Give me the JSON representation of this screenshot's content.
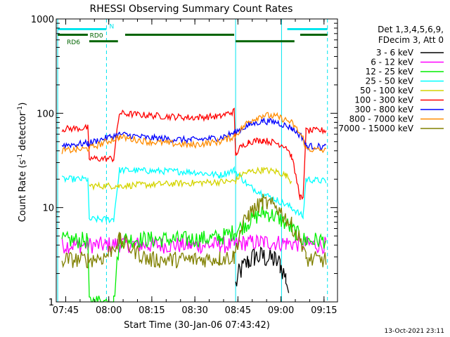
{
  "chart_data": {
    "type": "line",
    "title": "RHESSI Observing Summary Count Rates",
    "xlabel": "Start Time (30-Jan-06 07:43:42)",
    "ylabel": "Count Rate (s",
    "ylabel_sup1": "-1",
    "ylabel_mid": " detector",
    "ylabel_sup2": "-1",
    "ylabel_end": ")",
    "x_unit": "minutes after 07:43:42",
    "x_range": [
      -2,
      96
    ],
    "ylim": [
      1,
      1000
    ],
    "y_scale": "log",
    "x_ticks": [
      {
        "label": "07:45",
        "t": 1.3
      },
      {
        "label": "08:00",
        "t": 16.3
      },
      {
        "label": "08:15",
        "t": 31.3
      },
      {
        "label": "08:30",
        "t": 46.3
      },
      {
        "label": "08:45",
        "t": 61.3
      },
      {
        "label": "09:00",
        "t": 76.3
      },
      {
        "label": "09:15",
        "t": 91.3
      }
    ],
    "y_ticks": [
      {
        "label": "1",
        "v": 1
      },
      {
        "label": "10",
        "v": 10
      },
      {
        "label": "100",
        "v": 100
      },
      {
        "label": "1000",
        "v": 1000
      }
    ],
    "legend_header": [
      "Det 1,3,4,5,6,9,",
      "FDecim 3, Att 0"
    ],
    "legend_position": "right",
    "footer": "13-Oct-2021 23:11",
    "flags": [
      {
        "label": "N",
        "color": "#00e5ee",
        "value": 780,
        "segments": [
          [
            -1.5,
            15.5
          ],
          [
            78.5,
            92.5
          ]
        ]
      },
      {
        "label": "RD0",
        "color": "#006400",
        "value": 680,
        "segments": [
          [
            -1.5,
            9
          ],
          [
            22,
            60
          ],
          [
            83,
            92.5
          ]
        ]
      },
      {
        "label": "RD6",
        "color": "#006400",
        "value": 580,
        "segments": [
          [
            9.5,
            19.5
          ],
          [
            60.5,
            81
          ]
        ]
      }
    ],
    "markers": [
      {
        "t": -1.5,
        "color": "#00e5ee",
        "style": "solid"
      },
      {
        "t": 15.5,
        "color": "#00e5ee",
        "style": "dashed"
      },
      {
        "t": 60.5,
        "color": "#00e5ee",
        "style": "solid"
      },
      {
        "t": 76.5,
        "color": "#00e5ee",
        "style": "solid"
      },
      {
        "t": 92.5,
        "color": "#00e5ee",
        "style": "dashed"
      }
    ],
    "series": [
      {
        "name": "3 - 6 keV",
        "color": "#000000",
        "x": [
          60.5,
          62,
          65,
          67,
          70,
          74,
          76,
          78,
          79
        ],
        "y": [
          1.5,
          2.1,
          2.7,
          3.0,
          3.0,
          2.8,
          2.5,
          1.8,
          1.3
        ]
      },
      {
        "name": "6 - 12 keV",
        "color": "#ff00ff",
        "x": [
          0,
          9,
          15,
          20,
          30,
          45,
          55,
          60,
          62,
          70,
          78,
          84,
          92
        ],
        "y": [
          4.0,
          4.0,
          4.0,
          4.1,
          4.0,
          4.0,
          4.0,
          4.0,
          4.2,
          4.3,
          4.2,
          4.1,
          4.0
        ]
      },
      {
        "name": "12 - 25 keV",
        "color": "#00ee00",
        "x": [
          0,
          9,
          9.5,
          18,
          20,
          30,
          45,
          55,
          60,
          65,
          70,
          75,
          80,
          84,
          85,
          92
        ],
        "y": [
          4.5,
          4.5,
          1.0,
          1.0,
          4.6,
          4.6,
          4.6,
          4.8,
          5.5,
          7.0,
          9.0,
          8.0,
          6.0,
          4.6,
          4.5,
          4.5
        ]
      },
      {
        "name": "25 - 50 keV",
        "color": "#00ffff",
        "x": [
          0,
          9,
          9.5,
          18,
          20,
          30,
          45,
          55,
          60,
          65,
          70,
          75,
          80,
          84,
          85,
          92
        ],
        "y": [
          20,
          20,
          7.5,
          7.5,
          25,
          24.5,
          24,
          22,
          25,
          17,
          14,
          12,
          10,
          8,
          20,
          19
        ]
      },
      {
        "name": "50 - 100 keV",
        "color": "#d4d400",
        "x": [
          9.5,
          18,
          19.5,
          60.5,
          62,
          65,
          70,
          75,
          78,
          80
        ],
        "y": [
          17,
          17,
          17,
          19,
          22,
          24,
          25,
          24,
          22,
          19
        ]
      },
      {
        "name": "100 - 300 keV",
        "color": "#ff0000",
        "x": [
          0,
          9,
          9.5,
          18,
          20,
          30,
          45,
          55,
          60,
          60.5,
          62,
          65,
          70,
          75,
          78,
          80,
          83,
          84,
          85,
          92
        ],
        "y": [
          68,
          70,
          33,
          33,
          100,
          95,
          90,
          93,
          105,
          37,
          43,
          50,
          52,
          48,
          45,
          35,
          13,
          12,
          65,
          66
        ]
      },
      {
        "name": "300 - 800 keV",
        "color": "#0000ff",
        "x": [
          0,
          9,
          20,
          30,
          45,
          55,
          60,
          65,
          70,
          75,
          80,
          84,
          85,
          92
        ],
        "y": [
          46,
          48,
          60,
          55,
          52,
          55,
          62,
          75,
          83,
          80,
          70,
          55,
          45,
          44
        ]
      },
      {
        "name": "800 - 7000 keV",
        "color": "#ff8c00",
        "x": [
          0,
          9,
          20,
          30,
          45,
          55,
          60,
          65,
          70,
          75,
          80,
          84,
          85,
          92
        ],
        "y": [
          40,
          42,
          56,
          50,
          46,
          50,
          57,
          82,
          96,
          92,
          80,
          55,
          42,
          40
        ]
      },
      {
        "name": "7000 - 15000 keV",
        "color": "#808000",
        "x": [
          0,
          9,
          15,
          20,
          30,
          45,
          55,
          60,
          62,
          65,
          70,
          75,
          80,
          84,
          85,
          92
        ],
        "y": [
          2.8,
          2.8,
          3.0,
          4.5,
          2.8,
          2.8,
          2.9,
          3.0,
          5.5,
          8.5,
          11.5,
          10,
          6.5,
          4.0,
          2.8,
          2.8
        ]
      }
    ]
  }
}
